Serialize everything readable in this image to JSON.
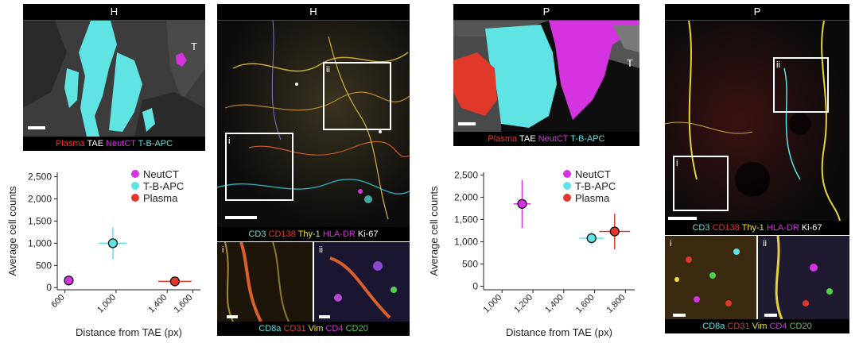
{
  "segmentation_panels": [
    {
      "title": "H",
      "region_label": "T",
      "legend": [
        {
          "text": "Plasma",
          "color": "#e0392b"
        },
        {
          "text": "TAE",
          "color": "#ffffff"
        },
        {
          "text": "NeutCT",
          "color": "#d633e0"
        },
        {
          "text": "T-B-APC",
          "color": "#5fe3e3"
        }
      ]
    },
    {
      "title": "P",
      "region_label": "T",
      "legend": [
        {
          "text": "Plasma",
          "color": "#e0392b"
        },
        {
          "text": "TAE",
          "color": "#ffffff"
        },
        {
          "text": "NeutCT",
          "color": "#d633e0"
        },
        {
          "text": "T-B-APC",
          "color": "#5fe3e3"
        }
      ]
    }
  ],
  "imc_panels": [
    {
      "title": "H",
      "roi_labels": [
        "i",
        "ii"
      ],
      "marker_legend_top": [
        {
          "text": "CD3",
          "color": "#5fe3e3"
        },
        {
          "text": "CD138",
          "color": "#e0392b"
        },
        {
          "text": "Thy-1",
          "color": "#f2e13a"
        },
        {
          "text": "HLA-DR",
          "color": "#d633e0"
        },
        {
          "text": "Ki-67",
          "color": "#ffffff"
        }
      ],
      "inset_labels": [
        "i",
        "ii"
      ],
      "marker_legend_bottom": [
        {
          "text": "CD8a",
          "color": "#5fe3e3"
        },
        {
          "text": "CD31",
          "color": "#e0392b"
        },
        {
          "text": "Vim",
          "color": "#f2e13a"
        },
        {
          "text": "CD4",
          "color": "#d633e0"
        },
        {
          "text": "CD20",
          "color": "#4fd14a"
        }
      ]
    },
    {
      "title": "P",
      "roi_labels": [
        "ii",
        "i"
      ],
      "marker_legend_top": [
        {
          "text": "CD3",
          "color": "#5fe3e3"
        },
        {
          "text": "CD138",
          "color": "#e0392b"
        },
        {
          "text": "Thy-1",
          "color": "#f2e13a"
        },
        {
          "text": "HLA-DR",
          "color": "#d633e0"
        },
        {
          "text": "Ki-67",
          "color": "#ffffff"
        }
      ],
      "inset_labels": [
        "i",
        "ii"
      ],
      "marker_legend_bottom": [
        {
          "text": "CD8a",
          "color": "#5fe3e3"
        },
        {
          "text": "CD31",
          "color": "#e0392b"
        },
        {
          "text": "Vim",
          "color": "#f2e13a"
        },
        {
          "text": "CD4",
          "color": "#d633e0"
        },
        {
          "text": "CD20",
          "color": "#4fd14a"
        }
      ]
    }
  ],
  "chart_data": [
    {
      "type": "scatter",
      "xlabel": "Distance from TAE (px)",
      "ylabel": "Average cell counts",
      "xlim": [
        540,
        1660
      ],
      "ylim": [
        -50,
        2600
      ],
      "xticks": [
        600,
        1000,
        1400,
        1600
      ],
      "xtick_labels": [
        "600",
        "1,000",
        "1,400",
        "1,600"
      ],
      "yticks": [
        0,
        500,
        1000,
        1500,
        2000,
        2500
      ],
      "ytick_labels": [
        "0",
        "500",
        "1,000",
        "1,500",
        "2,000",
        "2,500"
      ],
      "legend_position": "top-right",
      "series": [
        {
          "name": "NeutCT",
          "color": "#d633e0",
          "x": 630,
          "y": 160,
          "xerr": 20,
          "yerr": 70
        },
        {
          "name": "T-B-APC",
          "color": "#5fe3e3",
          "x": 975,
          "y": 1000,
          "xerr": 110,
          "yerr": 360
        },
        {
          "name": "Plasma",
          "color": "#e0392b",
          "x": 1460,
          "y": 140,
          "xerr": 130,
          "yerr": 40
        }
      ]
    },
    {
      "type": "scatter",
      "xlabel": "Distance from TAE (px)",
      "ylabel": "Average cell counts",
      "xlim": [
        880,
        1860
      ],
      "ylim": [
        -80,
        2560
      ],
      "xticks": [
        1000,
        1200,
        1400,
        1600,
        1800
      ],
      "xtick_labels": [
        "1,000",
        "1,200",
        "1,400",
        "1,600",
        "1,800"
      ],
      "yticks": [
        0,
        500,
        1000,
        1500,
        2000,
        2500
      ],
      "ytick_labels": [
        "0",
        "500",
        "1,000",
        "1,500",
        "2,000",
        "2,500"
      ],
      "legend_position": "top-right",
      "series": [
        {
          "name": "NeutCT",
          "color": "#d633e0",
          "x": 1130,
          "y": 1850,
          "xerr": 55,
          "yerr": 540
        },
        {
          "name": "T-B-APC",
          "color": "#5fe3e3",
          "x": 1580,
          "y": 1080,
          "xerr": 80,
          "yerr": 140
        },
        {
          "name": "Plasma",
          "color": "#e0392b",
          "x": 1730,
          "y": 1230,
          "xerr": 100,
          "yerr": 400
        }
      ]
    }
  ]
}
